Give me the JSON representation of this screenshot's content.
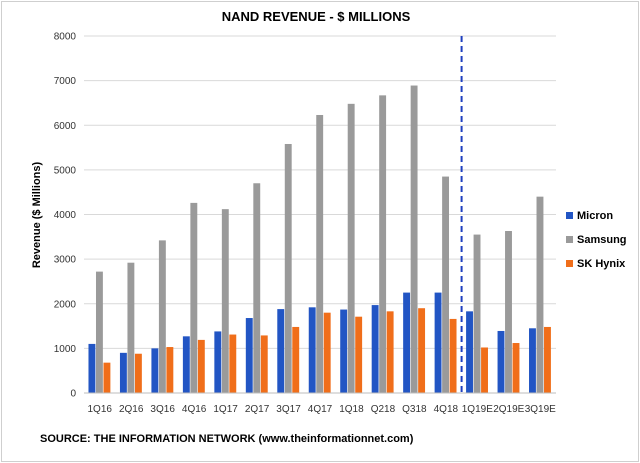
{
  "chart_data": {
    "type": "bar",
    "title": "NAND REVENUE - $ MILLIONS",
    "ylabel": "Revenue ($ Millions)",
    "xlabel": "",
    "ylim": [
      0,
      8000
    ],
    "yticks": [
      "0",
      "1000",
      "2000",
      "3000",
      "4000",
      "5000",
      "6000",
      "7000",
      "8000"
    ],
    "grid": true,
    "legend_position": "right",
    "categories": [
      "1Q16",
      "2Q16",
      "3Q16",
      "4Q16",
      "1Q17",
      "2Q17",
      "3Q17",
      "4Q17",
      "1Q18",
      "Q218",
      "Q318",
      "4Q18",
      "1Q19E",
      "2Q19E",
      "3Q19E"
    ],
    "series": [
      {
        "name": "Micron",
        "color": "#2255c4",
        "values": [
          1100,
          900,
          1000,
          1270,
          1380,
          1680,
          1880,
          1920,
          1870,
          1970,
          2250,
          2250,
          1830,
          1390,
          1450
        ]
      },
      {
        "name": "Samsung",
        "color": "#9a9a9a",
        "values": [
          2720,
          2920,
          3420,
          4260,
          4120,
          4700,
          5580,
          6230,
          6480,
          6670,
          6890,
          4850,
          3550,
          3630,
          4400
        ]
      },
      {
        "name": "SK Hynix",
        "color": "#f06e1a",
        "values": [
          680,
          880,
          1030,
          1190,
          1310,
          1290,
          1480,
          1800,
          1710,
          1830,
          1900,
          1660,
          1020,
          1120,
          1480
        ]
      }
    ],
    "divider_after_category": "4Q18",
    "divider_color": "#1f3fbf"
  },
  "source_text": "SOURCE: THE INFORMATION NETWORK (www.theinformationnet.com)"
}
